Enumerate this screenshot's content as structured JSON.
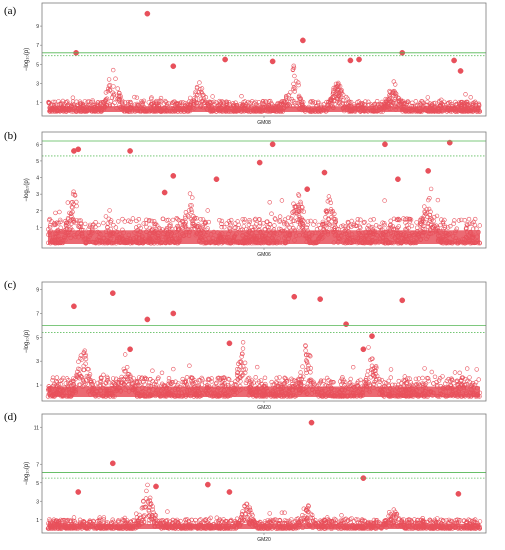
{
  "colors": {
    "points": "#e8505b",
    "threshold_solid": "#53b653",
    "threshold_dotted": "#62bf62",
    "frame": "#7a7a7a"
  },
  "chart_data": [
    {
      "type": "scatter",
      "subtype": "manhattan",
      "panel_label": "(a)",
      "xlabel": "GM08",
      "ylabel": "−log₁₀(p)",
      "yticks": [
        1,
        3,
        5,
        7,
        9
      ],
      "ylim": [
        0,
        11
      ],
      "thresholds": [
        {
          "value": 6.2,
          "style": "solid"
        },
        {
          "value": 5.9,
          "style": "dotted"
        }
      ],
      "baseline": 1.1,
      "peaks": [
        {
          "x": 0.15,
          "y": 4.8
        },
        {
          "x": 0.35,
          "y": 3.0
        },
        {
          "x": 0.57,
          "y": 5.0
        },
        {
          "x": 0.67,
          "y": 3.2
        },
        {
          "x": 0.8,
          "y": 3.0
        }
      ],
      "significant_points": [
        {
          "x": 0.065,
          "y": 6.2
        },
        {
          "x": 0.23,
          "y": 10.3
        },
        {
          "x": 0.59,
          "y": 7.5
        },
        {
          "x": 0.82,
          "y": 6.2
        },
        {
          "x": 0.94,
          "y": 5.4
        },
        {
          "x": 0.955,
          "y": 4.3
        },
        {
          "x": 0.52,
          "y": 5.3
        },
        {
          "x": 0.7,
          "y": 5.4
        },
        {
          "x": 0.72,
          "y": 5.5
        },
        {
          "x": 0.41,
          "y": 5.5
        },
        {
          "x": 0.29,
          "y": 4.8
        }
      ]
    },
    {
      "type": "scatter",
      "subtype": "manhattan",
      "panel_label": "(b)",
      "xlabel": "GM06",
      "ylabel": "−log₁₀(p)",
      "yticks": [
        1,
        2,
        3,
        4,
        5,
        6
      ],
      "ylim": [
        0,
        6.5
      ],
      "thresholds": [
        {
          "value": 6.2,
          "style": "solid"
        },
        {
          "value": 5.3,
          "style": "dotted"
        }
      ],
      "baseline": 1.5,
      "peaks": [
        {
          "x": 0.06,
          "y": 3.0
        },
        {
          "x": 0.33,
          "y": 3.0
        },
        {
          "x": 0.58,
          "y": 3.2
        },
        {
          "x": 0.65,
          "y": 2.8
        },
        {
          "x": 0.88,
          "y": 3.0
        }
      ],
      "significant_points": [
        {
          "x": 0.06,
          "y": 5.6
        },
        {
          "x": 0.07,
          "y": 5.7
        },
        {
          "x": 0.19,
          "y": 5.6
        },
        {
          "x": 0.49,
          "y": 4.9
        },
        {
          "x": 0.52,
          "y": 6.0
        },
        {
          "x": 0.64,
          "y": 4.3
        },
        {
          "x": 0.78,
          "y": 6.0
        },
        {
          "x": 0.93,
          "y": 6.1
        },
        {
          "x": 0.81,
          "y": 3.9
        },
        {
          "x": 0.88,
          "y": 4.4
        },
        {
          "x": 0.29,
          "y": 4.1
        },
        {
          "x": 0.39,
          "y": 3.9
        },
        {
          "x": 0.27,
          "y": 3.1
        },
        {
          "x": 0.6,
          "y": 3.3
        }
      ]
    },
    {
      "type": "scatter",
      "subtype": "manhattan",
      "panel_label": "(c)",
      "xlabel": "GM20",
      "ylabel": "−log₁₀(p)",
      "yticks": [
        1,
        3,
        5,
        7,
        9
      ],
      "ylim": [
        0,
        9.3
      ],
      "thresholds": [
        {
          "value": 6.0,
          "style": "solid"
        },
        {
          "value": 5.4,
          "style": "dotted"
        }
      ],
      "baseline": 1.6,
      "peaks": [
        {
          "x": 0.08,
          "y": 4.8
        },
        {
          "x": 0.18,
          "y": 3.5
        },
        {
          "x": 0.45,
          "y": 3.8
        },
        {
          "x": 0.6,
          "y": 4.8
        },
        {
          "x": 0.75,
          "y": 3.5
        }
      ],
      "significant_points": [
        {
          "x": 0.06,
          "y": 7.6
        },
        {
          "x": 0.15,
          "y": 8.7
        },
        {
          "x": 0.23,
          "y": 6.5
        },
        {
          "x": 0.29,
          "y": 7.0
        },
        {
          "x": 0.57,
          "y": 8.4
        },
        {
          "x": 0.63,
          "y": 8.2
        },
        {
          "x": 0.69,
          "y": 6.1
        },
        {
          "x": 0.82,
          "y": 8.1
        },
        {
          "x": 0.75,
          "y": 5.1
        },
        {
          "x": 0.73,
          "y": 4.0
        },
        {
          "x": 0.42,
          "y": 4.5
        },
        {
          "x": 0.19,
          "y": 4.0
        }
      ]
    },
    {
      "type": "scatter",
      "subtype": "manhattan",
      "panel_label": "(d)",
      "xlabel": "GM20",
      "ylabel": "−log₁₀(p)",
      "yticks": [
        1,
        3,
        5,
        7,
        11
      ],
      "ylim": [
        0,
        12
      ],
      "thresholds": [
        {
          "value": 6.1,
          "style": "solid"
        },
        {
          "value": 5.5,
          "style": "dotted"
        }
      ],
      "baseline": 1.0,
      "peaks": [
        {
          "x": 0.23,
          "y": 4.8
        },
        {
          "x": 0.46,
          "y": 2.8
        },
        {
          "x": 0.6,
          "y": 2.4
        },
        {
          "x": 0.8,
          "y": 2.2
        }
      ],
      "significant_points": [
        {
          "x": 0.61,
          "y": 11.5
        },
        {
          "x": 0.15,
          "y": 7.1
        },
        {
          "x": 0.73,
          "y": 5.5
        },
        {
          "x": 0.37,
          "y": 4.8
        },
        {
          "x": 0.07,
          "y": 4.0
        },
        {
          "x": 0.95,
          "y": 3.8
        },
        {
          "x": 0.25,
          "y": 4.6
        },
        {
          "x": 0.42,
          "y": 4.0
        }
      ]
    }
  ]
}
